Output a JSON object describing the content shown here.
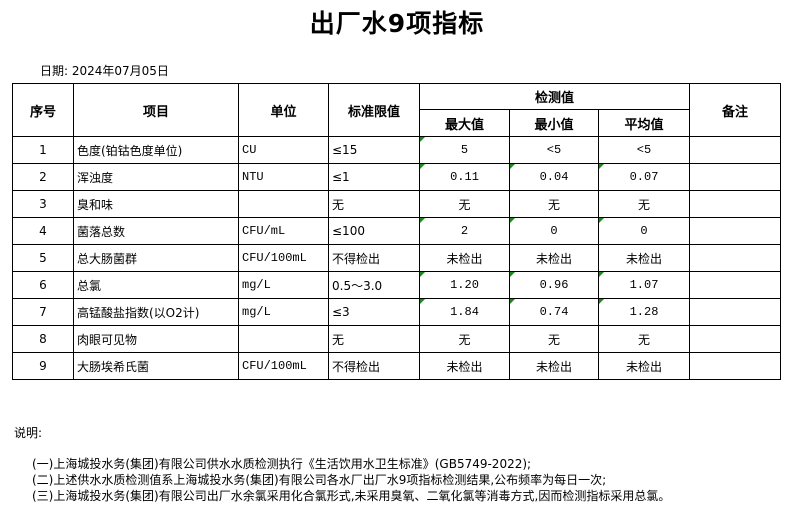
{
  "title": "出厂水9项指标",
  "date_label": "日期: 2024年07月05日",
  "table": {
    "headers": {
      "seq": "序号",
      "item": "项目",
      "unit": "单位",
      "limit": "标准限值",
      "detected": "检测值",
      "max": "最大值",
      "min": "最小值",
      "avg": "平均值",
      "remark": "备注"
    },
    "rows": [
      {
        "seq": "1",
        "item": "色度(铂钴色度单位)",
        "unit": "CU",
        "limit": "≤15",
        "max": "5",
        "min": "<5",
        "avg": "<5",
        "remark": "",
        "marked": [
          true,
          false,
          false
        ]
      },
      {
        "seq": "2",
        "item": "浑浊度",
        "unit": "NTU",
        "limit": "≤1",
        "max": "0.11",
        "min": "0.04",
        "avg": "0.07",
        "remark": "",
        "marked": [
          true,
          true,
          true
        ]
      },
      {
        "seq": "3",
        "item": "臭和味",
        "unit": "",
        "limit": "无",
        "max": "无",
        "min": "无",
        "avg": "无",
        "remark": "",
        "marked": [
          false,
          false,
          false
        ]
      },
      {
        "seq": "4",
        "item": "菌落总数",
        "unit": "CFU/mL",
        "limit": "≤100",
        "max": "2",
        "min": "0",
        "avg": "0",
        "remark": "",
        "marked": [
          true,
          true,
          true
        ]
      },
      {
        "seq": "5",
        "item": "总大肠菌群",
        "unit": "CFU/100mL",
        "limit": "不得检出",
        "max": "未检出",
        "min": "未检出",
        "avg": "未检出",
        "remark": "",
        "marked": [
          false,
          false,
          false
        ]
      },
      {
        "seq": "6",
        "item": "总氯",
        "unit": "mg/L",
        "limit": "0.5～3.0",
        "max": "1.20",
        "min": "0.96",
        "avg": "1.07",
        "remark": "",
        "marked": [
          true,
          true,
          true
        ]
      },
      {
        "seq": "7",
        "item": "高锰酸盐指数(以O2计)",
        "unit": "mg/L",
        "limit": "≤3",
        "max": "1.84",
        "min": "0.74",
        "avg": "1.28",
        "remark": "",
        "marked": [
          true,
          true,
          true
        ]
      },
      {
        "seq": "8",
        "item": "肉眼可见物",
        "unit": "",
        "limit": "无",
        "max": "无",
        "min": "无",
        "avg": "无",
        "remark": "",
        "marked": [
          false,
          false,
          false
        ]
      },
      {
        "seq": "9",
        "item": "大肠埃希氏菌",
        "unit": "CFU/100mL",
        "limit": "不得检出",
        "max": "未检出",
        "min": "未检出",
        "avg": "未检出",
        "remark": "",
        "marked": [
          false,
          false,
          false
        ]
      }
    ],
    "marker_color": "#1a8a1a"
  },
  "notes": {
    "label": "说明:",
    "lines": [
      "(一)上海城投水务(集团)有限公司供水水质检测执行《生活饮用水卫生标准》(GB5749-2022);",
      "(二)上述供水水质检测值系上海城投水务(集团)有限公司各水厂出厂水9项指标检测结果,公布频率为每日一次;",
      "(三)上海城投水务(集团)有限公司出厂水余氯采用化合氯形式,未采用臭氧、二氧化氯等消毒方式,因而检测指标采用总氯。"
    ]
  }
}
